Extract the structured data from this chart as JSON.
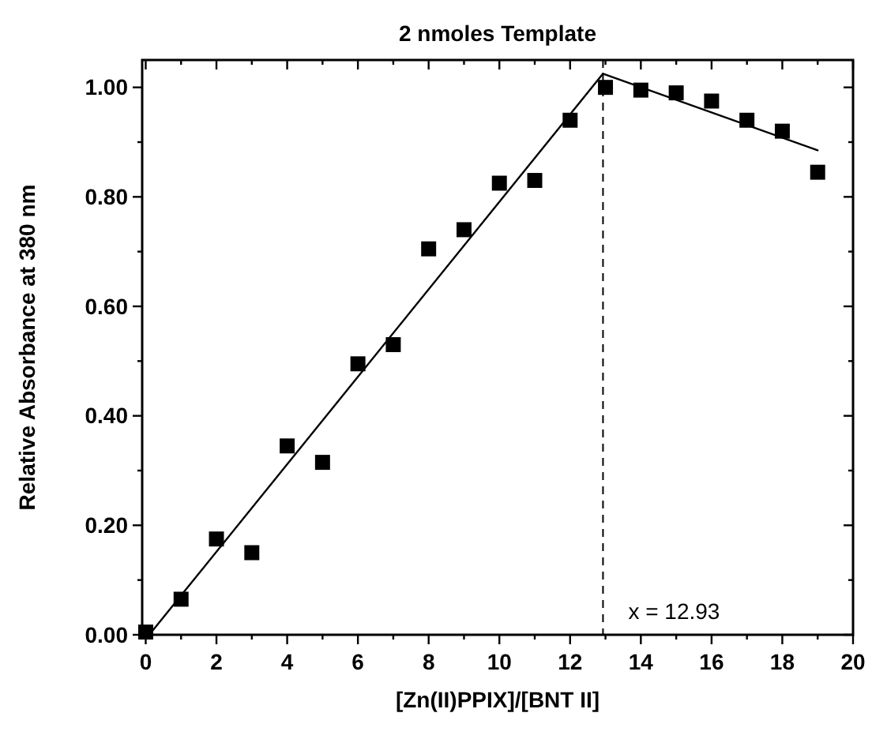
{
  "chart_data": {
    "type": "scatter",
    "title": "2 nmoles Template",
    "xlabel": "[Zn(II)PPIX]/[BNT II]",
    "ylabel": "Relative Absorbance at 380 nm",
    "series": [
      {
        "color": "#000000",
        "marker": "square",
        "x": [
          0,
          1,
          2,
          3,
          4,
          5,
          6,
          7,
          8,
          9,
          10,
          11,
          12,
          13,
          14,
          15,
          16,
          17,
          18,
          19
        ],
        "values": [
          0.005,
          0.065,
          0.175,
          0.15,
          0.345,
          0.315,
          0.495,
          0.53,
          0.705,
          0.74,
          0.825,
          0.83,
          0.94,
          1.0,
          0.995,
          0.99,
          0.975,
          0.94,
          0.92,
          0.845
        ]
      },
      {
        "type": "line",
        "color": "#000000",
        "marker": "none",
        "line_style": "solid",
        "x": [
          0.1,
          12.93
        ],
        "values": [
          0,
          1.025
        ]
      },
      {
        "type": "line",
        "color": "#000000",
        "marker": "none",
        "line_style": "solid",
        "x": [
          12.93,
          19
        ],
        "values": [
          1.025,
          0.885
        ]
      }
    ],
    "ref_lines": [
      {
        "axis": "x",
        "value": 12.93,
        "label": "x = 12.93",
        "color": "#000000",
        "line_style": "dashed"
      }
    ],
    "xlim": [
      -0.1,
      20
    ],
    "ylim": [
      0,
      1.05
    ],
    "xticks": [
      0,
      {
        "value": 1,
        "label": null
      },
      2,
      {
        "value": 3,
        "label": null
      },
      4,
      {
        "value": 5,
        "label": null
      },
      6,
      {
        "value": 7,
        "label": null
      },
      8,
      {
        "value": 9,
        "label": null
      },
      10,
      {
        "value": 11,
        "label": null
      },
      12,
      {
        "value": 13,
        "label": null
      },
      14,
      {
        "value": 15,
        "label": null
      },
      16,
      {
        "value": 17,
        "label": null
      },
      18,
      {
        "value": 19,
        "label": null
      },
      20
    ],
    "yticks": [
      {
        "value": 0,
        "label": "0.00"
      },
      {
        "value": 0.1,
        "label": null
      },
      {
        "value": 0.2,
        "label": "0.20"
      },
      {
        "value": 0.3,
        "label": null
      },
      {
        "value": 0.4,
        "label": "0.40"
      },
      {
        "value": 0.5,
        "label": null
      },
      {
        "value": 0.6,
        "label": "0.60"
      },
      {
        "value": 0.7,
        "label": null
      },
      {
        "value": 0.8,
        "label": "0.80"
      },
      {
        "value": 0.9,
        "label": null
      },
      {
        "value": 1.0,
        "label": "1.00"
      }
    ],
    "grid": false,
    "legend": false
  }
}
